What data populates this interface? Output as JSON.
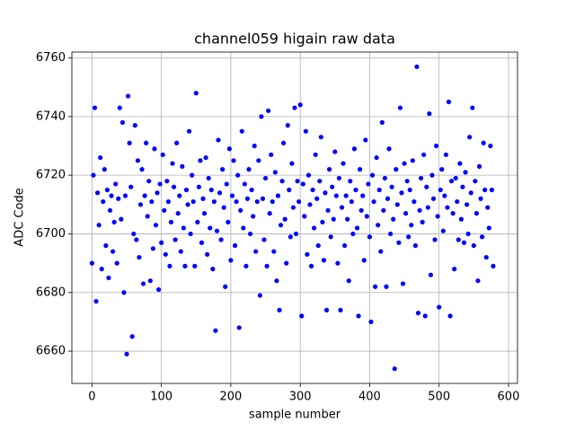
{
  "chart_data": {
    "type": "scatter",
    "title": "channel059 higain raw data",
    "x_label": "sample number",
    "y_label": "ADC Code",
    "color": "#0000ff",
    "grid": true,
    "xlim": [
      -29,
      613
    ],
    "xticks": [
      0,
      100,
      200,
      300,
      400,
      500,
      600
    ],
    "ylim": [
      6649,
      6762
    ],
    "yticks": [
      6660,
      6680,
      6700,
      6720,
      6740,
      6760
    ],
    "x": [
      0,
      2,
      4,
      6,
      8,
      10,
      12,
      14,
      16,
      18,
      20,
      22,
      24,
      26,
      28,
      30,
      32,
      34,
      36,
      38,
      40,
      42,
      44,
      46,
      48,
      50,
      52,
      54,
      56,
      58,
      60,
      62,
      64,
      66,
      68,
      70,
      72,
      74,
      76,
      78,
      80,
      82,
      84,
      86,
      88,
      90,
      92,
      94,
      96,
      98,
      100,
      102,
      104,
      106,
      108,
      110,
      112,
      114,
      116,
      118,
      120,
      122,
      124,
      126,
      128,
      130,
      132,
      134,
      136,
      138,
      140,
      142,
      144,
      146,
      148,
      150,
      152,
      154,
      156,
      158,
      160,
      162,
      164,
      166,
      168,
      170,
      172,
      174,
      176,
      178,
      180,
      182,
      184,
      186,
      188,
      190,
      192,
      194,
      196,
      198,
      200,
      202,
      204,
      206,
      208,
      210,
      212,
      214,
      216,
      218,
      220,
      222,
      224,
      226,
      228,
      230,
      232,
      234,
      236,
      238,
      240,
      242,
      244,
      246,
      248,
      250,
      252,
      254,
      256,
      258,
      260,
      262,
      264,
      266,
      268,
      270,
      272,
      274,
      276,
      278,
      280,
      282,
      284,
      286,
      288,
      290,
      292,
      294,
      296,
      298,
      300,
      302,
      304,
      306,
      308,
      310,
      312,
      314,
      316,
      318,
      320,
      322,
      324,
      326,
      328,
      330,
      332,
      334,
      336,
      338,
      340,
      342,
      344,
      346,
      348,
      350,
      352,
      354,
      356,
      358,
      360,
      362,
      364,
      366,
      368,
      370,
      372,
      374,
      376,
      378,
      380,
      382,
      384,
      386,
      388,
      390,
      392,
      394,
      396,
      398,
      400,
      402,
      404,
      406,
      408,
      410,
      412,
      414,
      416,
      418,
      420,
      422,
      424,
      426,
      428,
      430,
      432,
      434,
      436,
      438,
      440,
      442,
      444,
      446,
      448,
      450,
      452,
      454,
      456,
      458,
      460,
      462,
      464,
      466,
      468,
      470,
      472,
      474,
      476,
      478,
      480,
      482,
      484,
      486,
      488,
      490,
      492,
      494,
      496,
      498,
      500,
      502,
      504,
      506,
      508,
      510,
      512,
      514,
      516,
      518,
      520,
      522,
      524,
      526,
      528,
      530,
      532,
      534,
      536,
      538,
      540,
      542,
      544,
      546,
      548,
      550,
      552,
      554,
      556,
      558,
      560,
      562,
      564,
      566,
      568,
      570,
      572,
      574,
      576,
      578
    ],
    "values": [
      6690,
      6720,
      6743,
      6677,
      6714,
      6703,
      6726,
      6688,
      6711,
      6722,
      6696,
      6715,
      6685,
      6708,
      6713,
      6694,
      6704,
      6717,
      6690,
      6712,
      6743,
      6705,
      6738,
      6680,
      6713,
      6659,
      6747,
      6731,
      6716,
      6665,
      6700,
      6737,
      6698,
      6725,
      6692,
      6710,
      6722,
      6683,
      6713,
      6731,
      6706,
      6718,
      6684,
      6711,
      6695,
      6729,
      6703,
      6714,
      6681,
      6717,
      6697,
      6727,
      6708,
      6693,
      6718,
      6711,
      6689,
      6704,
      6724,
      6716,
      6698,
      6731,
      6707,
      6713,
      6694,
      6723,
      6702,
      6689,
      6715,
      6710,
      6735,
      6700,
      6720,
      6711,
      6689,
      6748,
      6704,
      6716,
      6725,
      6697,
      6712,
      6707,
      6726,
      6693,
      6719,
      6702,
      6715,
      6688,
      6711,
      6667,
      6701,
      6732,
      6714,
      6698,
      6722,
      6709,
      6682,
      6717,
      6704,
      6729,
      6691,
      6713,
      6725,
      6696,
      6711,
      6720,
      6668,
      6708,
      6735,
      6702,
      6717,
      6689,
      6712,
      6722,
      6700,
      6715,
      6706,
      6730,
      6694,
      6711,
      6725,
      6679,
      6740,
      6712,
      6698,
      6719,
      6689,
      6742,
      6707,
      6727,
      6711,
      6694,
      6721,
      6684,
      6713,
      6674,
      6703,
      6718,
      6731,
      6705,
      6690,
      6737,
      6715,
      6699,
      6724,
      6709,
      6743,
      6700,
      6718,
      6711,
      6744,
      6672,
      6717,
      6706,
      6735,
      6693,
      6720,
      6710,
      6689,
      6715,
      6702,
      6727,
      6712,
      6696,
      6718,
      6733,
      6704,
      6691,
      6714,
      6674,
      6708,
      6722,
      6699,
      6716,
      6705,
      6728,
      6713,
      6690,
      6719,
      6674,
      6709,
      6724,
      6696,
      6713,
      6705,
      6684,
      6718,
      6711,
      6700,
      6729,
      6715,
      6702,
      6672,
      6722,
      6708,
      6713,
      6691,
      6732,
      6706,
      6717,
      6699,
      6670,
      6720,
      6711,
      6682,
      6726,
      6703,
      6715,
      6694,
      6738,
      6708,
      6719,
      6682,
      6712,
      6729,
      6700,
      6716,
      6705,
      6654,
      6722,
      6710,
      6697,
      6743,
      6714,
      6683,
      6724,
      6707,
      6718,
      6699,
      6715,
      6703,
      6725,
      6711,
      6696,
      6757,
      6673,
      6708,
      6719,
      6704,
      6727,
      6672,
      6716,
      6709,
      6741,
      6686,
      6720,
      6712,
      6698,
      6730,
      6706,
      6675,
      6715,
      6722,
      6701,
      6713,
      6727,
      6709,
      6745,
      6672,
      6718,
      6707,
      6688,
      6719,
      6711,
      6698,
      6724,
      6705,
      6716,
      6697,
      6721,
      6710,
      6700,
      6733,
      6714,
      6743,
      6696,
      6718,
      6707,
      6684,
      6723,
      6712,
      6699,
      6731,
      6715,
      6692,
      6709,
      6702,
      6730,
      6715,
      6689
    ]
  }
}
